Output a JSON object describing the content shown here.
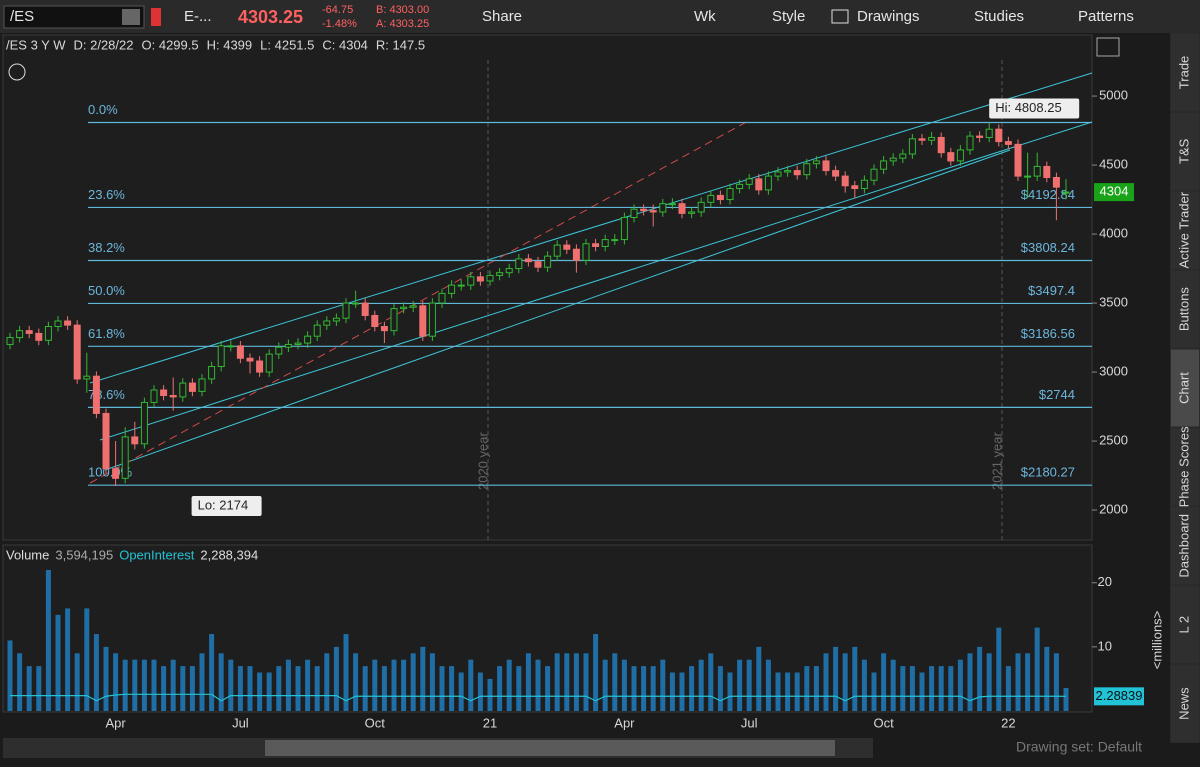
{
  "toolbar": {
    "symbol": "/ES",
    "description": "E-...",
    "last": "4303.25",
    "change": "-64.75",
    "change_pct": "-1.48%",
    "bid": "B: 4303.00",
    "ask": "A: 4303.25",
    "buttons": [
      "Share",
      "Wk",
      "Style",
      "Drawings",
      "Studies",
      "Patterns"
    ]
  },
  "info_bar": [
    "/ES 3 Y W",
    "D: 2/28/22",
    "O: 4299.5",
    "H: 4399",
    "L: 4251.5",
    "C: 4304",
    "R: 147.5"
  ],
  "sidebar": {
    "tabs": [
      "Trade",
      "T&S",
      "Active Trader",
      "Buttons",
      "Chart",
      "Phase Scores",
      "Dashboard",
      "L 2",
      "News"
    ]
  },
  "footer": {
    "drawing_set": "Drawing set: Default"
  },
  "chart_data": [
    {
      "type": "candlestick",
      "up_color": "#33b833",
      "down_color": "#f07070",
      "categories": [
        null,
        null,
        null,
        null,
        null,
        null,
        null,
        null,
        null,
        null,
        null,
        "Apr",
        null,
        null,
        null,
        null,
        null,
        null,
        null,
        null,
        null,
        null,
        null,
        null,
        "Jul",
        null,
        null,
        null,
        null,
        null,
        null,
        null,
        null,
        null,
        null,
        null,
        null,
        null,
        "Oct",
        null,
        null,
        null,
        null,
        null,
        null,
        null,
        null,
        null,
        null,
        null,
        "21",
        null,
        null,
        null,
        null,
        null,
        null,
        null,
        null,
        null,
        null,
        null,
        null,
        null,
        "Apr",
        null,
        null,
        null,
        null,
        null,
        null,
        null,
        null,
        null,
        null,
        null,
        null,
        "Jul",
        null,
        null,
        null,
        null,
        null,
        null,
        null,
        null,
        null,
        null,
        null,
        null,
        null,
        "Oct",
        null,
        null,
        null,
        null,
        null,
        null,
        null,
        null,
        null,
        null,
        null,
        null,
        "22",
        null,
        null,
        null,
        null,
        null,
        null
      ],
      "open": [
        3200,
        3250,
        3300,
        3280,
        3230,
        3330,
        3370,
        3340,
        2950,
        2970,
        2700,
        2300,
        2230,
        2530,
        2480,
        2780,
        2870,
        2830,
        2820,
        2920,
        2860,
        2950,
        3040,
        3190,
        3190,
        3100,
        3080,
        3000,
        3130,
        3180,
        3200,
        3210,
        3260,
        3340,
        3370,
        3390,
        3500,
        3500,
        3410,
        3330,
        3300,
        3460,
        3470,
        3480,
        3260,
        3500,
        3570,
        3630,
        3630,
        3690,
        3660,
        3700,
        3720,
        3750,
        3820,
        3800,
        3760,
        3840,
        3920,
        3890,
        3810,
        3930,
        3910,
        3960,
        3960,
        4120,
        4180,
        4170,
        4160,
        4220,
        4220,
        4150,
        4160,
        4230,
        4280,
        4250,
        4330,
        4360,
        4400,
        4320,
        4420,
        4450,
        4460,
        4430,
        4510,
        4530,
        4460,
        4420,
        4350,
        4330,
        4390,
        4470,
        4530,
        4550,
        4580,
        4690,
        4680,
        4700,
        4590,
        4530,
        4610,
        4710,
        4700,
        4760,
        4670,
        4650,
        4420,
        4420,
        4490,
        4410,
        4299.5
      ],
      "high": [
        3285,
        3335,
        3335,
        3315,
        3365,
        3405,
        3405,
        3375,
        3140,
        3005,
        2735,
        2500,
        2600,
        2640,
        2815,
        2905,
        2905,
        2960,
        2955,
        2955,
        2985,
        3075,
        3225,
        3230,
        3225,
        3135,
        3115,
        3165,
        3215,
        3235,
        3245,
        3295,
        3375,
        3405,
        3425,
        3535,
        3590,
        3535,
        3445,
        3365,
        3495,
        3505,
        3515,
        3515,
        3535,
        3605,
        3665,
        3670,
        3725,
        3725,
        3735,
        3755,
        3785,
        3855,
        3855,
        3835,
        3875,
        3955,
        3955,
        3925,
        3965,
        3965,
        3995,
        4000,
        4155,
        4215,
        4215,
        4215,
        4255,
        4260,
        4255,
        4195,
        4265,
        4315,
        4315,
        4365,
        4395,
        4435,
        4435,
        4455,
        4485,
        4495,
        4495,
        4545,
        4565,
        4565,
        4495,
        4455,
        4385,
        4425,
        4505,
        4565,
        4585,
        4615,
        4725,
        4725,
        4740,
        4735,
        4625,
        4645,
        4745,
        4745,
        4808.25,
        4795,
        4705,
        4685,
        4590,
        4590,
        4525,
        4445,
        4399
      ],
      "low": [
        3165,
        3215,
        3245,
        3195,
        3195,
        3295,
        3305,
        2915,
        2850,
        2665,
        2265,
        2174,
        2195,
        2440,
        2445,
        2745,
        2795,
        2720,
        2785,
        2825,
        2825,
        2915,
        3005,
        3150,
        3065,
        2990,
        2965,
        2965,
        3095,
        3145,
        3165,
        3175,
        3225,
        3305,
        3335,
        3355,
        3465,
        3375,
        3295,
        3210,
        3265,
        3425,
        3435,
        3225,
        3225,
        3465,
        3535,
        3590,
        3595,
        3625,
        3625,
        3665,
        3685,
        3715,
        3765,
        3725,
        3725,
        3805,
        3855,
        3720,
        3775,
        3875,
        3875,
        3920,
        3925,
        4085,
        4135,
        4055,
        4125,
        4180,
        4115,
        4115,
        4125,
        4195,
        4215,
        4215,
        4295,
        4325,
        4285,
        4285,
        4385,
        4415,
        4395,
        4395,
        4475,
        4425,
        4385,
        4300,
        4260,
        4295,
        4355,
        4435,
        4495,
        4515,
        4545,
        4645,
        4645,
        4555,
        4495,
        4495,
        4575,
        4665,
        4665,
        4635,
        4615,
        4385,
        4260,
        4385,
        4375,
        4100,
        4251.5
      ],
      "close": [
        3250,
        3300,
        3280,
        3230,
        3330,
        3370,
        3340,
        2950,
        2970,
        2700,
        2300,
        2230,
        2530,
        2480,
        2780,
        2870,
        2830,
        2820,
        2920,
        2860,
        2950,
        3040,
        3190,
        3190,
        3100,
        3080,
        3000,
        3130,
        3180,
        3200,
        3210,
        3260,
        3340,
        3370,
        3390,
        3500,
        3500,
        3410,
        3330,
        3300,
        3460,
        3470,
        3480,
        3260,
        3500,
        3570,
        3630,
        3630,
        3690,
        3660,
        3700,
        3720,
        3750,
        3820,
        3800,
        3760,
        3840,
        3920,
        3890,
        3810,
        3930,
        3910,
        3960,
        3960,
        4120,
        4180,
        4170,
        4160,
        4220,
        4220,
        4150,
        4160,
        4230,
        4280,
        4250,
        4330,
        4360,
        4400,
        4320,
        4420,
        4450,
        4460,
        4430,
        4510,
        4530,
        4460,
        4420,
        4350,
        4330,
        4390,
        4470,
        4530,
        4550,
        4580,
        4690,
        4680,
        4700,
        4590,
        4530,
        4610,
        4710,
        4700,
        4760,
        4670,
        4650,
        4420,
        4420,
        4490,
        4410,
        4340,
        4304
      ],
      "ylim": [
        1783,
        5457
      ],
      "yticks": [
        2000,
        2500,
        3000,
        3500,
        4000,
        4500,
        5000
      ],
      "fib": [
        {
          "label": "0.0%",
          "value": 4808.25
        },
        {
          "label": "23.6%",
          "value": 4192.84,
          "value_label": "$4192.84"
        },
        {
          "label": "38.2%",
          "value": 3808.24,
          "value_label": "$3808.24"
        },
        {
          "label": "50.0%",
          "value": 3497.4,
          "value_label": "$3497.4"
        },
        {
          "label": "61.8%",
          "value": 3186.56,
          "value_label": "$3186.56"
        },
        {
          "label": "78.6%",
          "value": 2744,
          "value_label": "$2744"
        },
        {
          "label": "100.0%",
          "value": 2180.27,
          "value_label": "$2180.27"
        }
      ],
      "hi_label": "Hi: 4808.25",
      "lo_label": "Lo: 2174",
      "year_labels": [
        "2020 year",
        "2021 year"
      ]
    },
    {
      "type": "bar",
      "title": "Volume",
      "volume_label": "3,594,195",
      "color": "#1f6ea6",
      "unit_label": "<millions>",
      "values": [
        11,
        9,
        7,
        7,
        22,
        15,
        16,
        9,
        16,
        12,
        10,
        9,
        8,
        8,
        8,
        8,
        7,
        8,
        7,
        7,
        9,
        12,
        9,
        8,
        7,
        7,
        6,
        6,
        7,
        8,
        7,
        8,
        7,
        9,
        10,
        12,
        9,
        7,
        8,
        7,
        8,
        8,
        9,
        10,
        9,
        7,
        7,
        6,
        8,
        6,
        5,
        7,
        8,
        7,
        9,
        8,
        7,
        9,
        9,
        9,
        9,
        12,
        8,
        9,
        8,
        7,
        7,
        7,
        8,
        6,
        6,
        7,
        8,
        9,
        7,
        6,
        8,
        8,
        10,
        8,
        6,
        6,
        6,
        7,
        7,
        9,
        10,
        9,
        10,
        8,
        6,
        9,
        8,
        7,
        7,
        6,
        7,
        7,
        7,
        8,
        9,
        10,
        9,
        13,
        7,
        9,
        9,
        13,
        10,
        9,
        3.594195
      ],
      "open_interest": {
        "name": "OpenInterest",
        "label": "2,288,394",
        "color": "#22c3d6",
        "values": [
          2.4,
          2.4,
          2.4,
          2.4,
          2.4,
          2.4,
          2.4,
          2.4,
          2.4,
          1.6,
          2.3,
          2.5,
          2.6,
          2.6,
          2.6,
          2.6,
          2.6,
          2.6,
          2.6,
          2.6,
          2.6,
          2.6,
          1.6,
          2.4,
          2.4,
          2.4,
          2.4,
          2.4,
          2.4,
          2.4,
          2.4,
          2.4,
          2.4,
          2.4,
          2.4,
          1.6,
          2.3,
          2.3,
          2.3,
          2.3,
          2.3,
          2.3,
          2.3,
          2.3,
          2.3,
          2.3,
          2.3,
          2.3,
          1.6,
          2.3,
          2.3,
          2.3,
          2.3,
          2.3,
          2.3,
          2.3,
          2.3,
          2.3,
          2.3,
          2.3,
          2.3,
          1.6,
          2.3,
          2.3,
          2.3,
          2.3,
          2.3,
          2.3,
          2.3,
          2.3,
          2.3,
          2.3,
          2.3,
          2.3,
          1.6,
          2.3,
          2.3,
          2.3,
          2.3,
          2.3,
          2.3,
          2.3,
          2.3,
          2.3,
          2.3,
          2.3,
          2.3,
          1.6,
          2.3,
          2.3,
          2.3,
          2.3,
          2.3,
          2.3,
          2.3,
          2.3,
          2.3,
          2.3,
          2.3,
          2.3,
          1.6,
          2.2,
          2.3,
          2.3,
          2.3,
          2.3,
          2.3,
          2.3,
          2.3,
          2.3,
          2.28839
        ]
      },
      "ylim": [
        0,
        22.3
      ],
      "yticks": [
        10,
        20
      ]
    }
  ]
}
